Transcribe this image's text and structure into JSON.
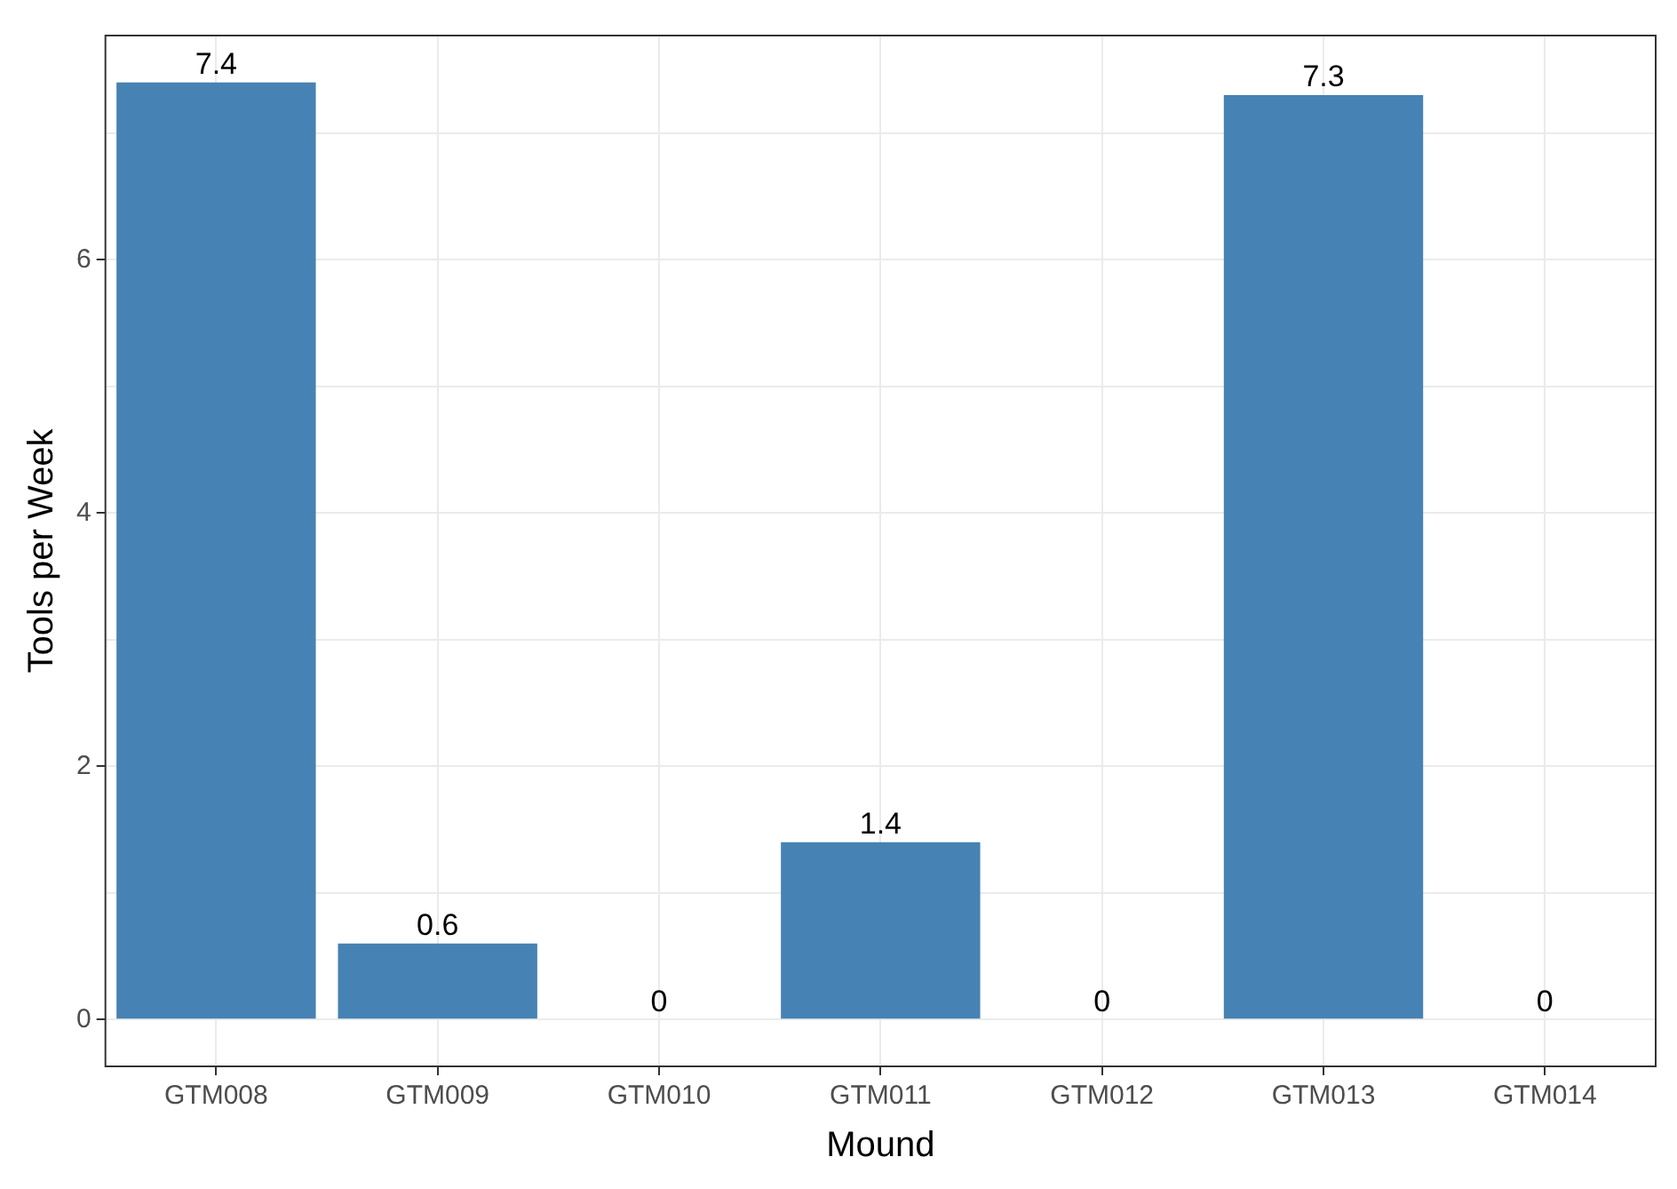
{
  "chart_data": {
    "type": "bar",
    "xlabel": "Mound",
    "ylabel": "Tools per Week",
    "categories": [
      "GTM008",
      "GTM009",
      "GTM010",
      "GTM011",
      "GTM012",
      "GTM013",
      "GTM014"
    ],
    "values": [
      7.4,
      0.6,
      0,
      1.4,
      0,
      7.3,
      0
    ],
    "color": "#4682b4",
    "ylim": [
      -0.37,
      7.77
    ],
    "yticks": [
      0,
      {
        "value": 1,
        "label": null
      },
      2,
      {
        "value": 3,
        "label": null
      },
      4,
      {
        "value": 5,
        "label": null
      },
      6,
      {
        "value": 7,
        "label": null
      }
    ],
    "grid": true,
    "data_labels": true
  }
}
